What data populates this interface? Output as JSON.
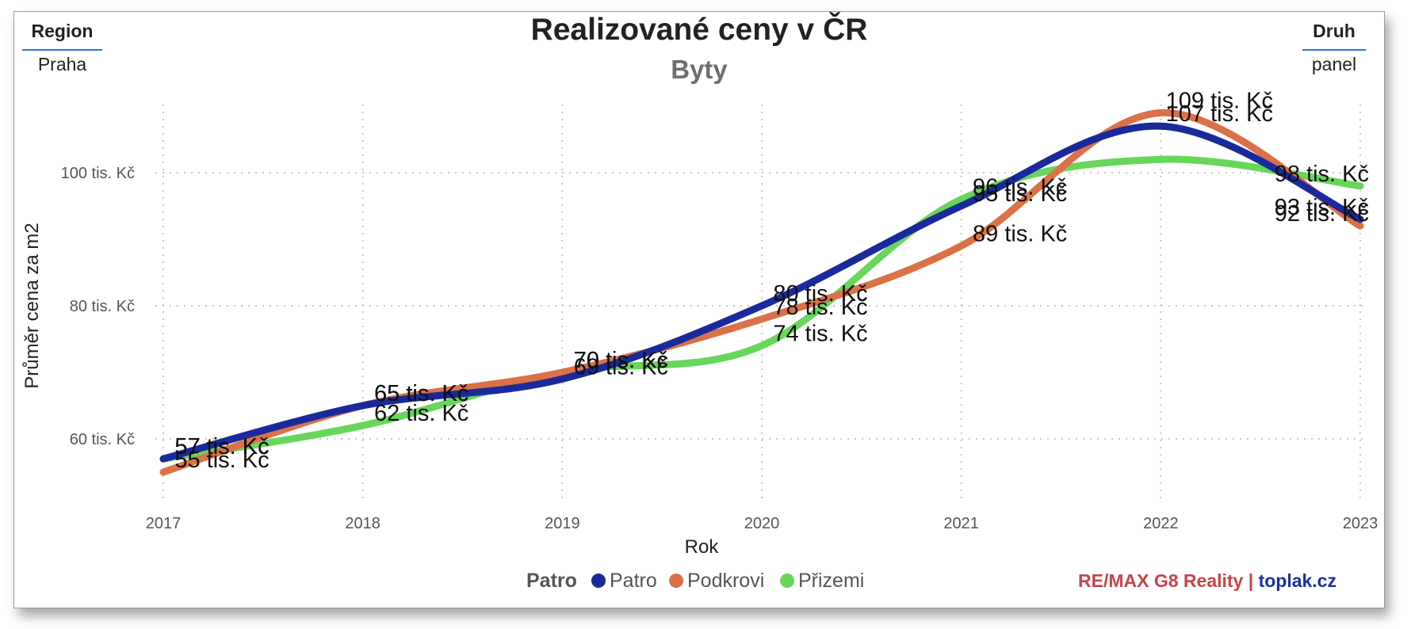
{
  "filters": {
    "region": {
      "header": "Region",
      "value": "Praha"
    },
    "druh": {
      "header": "Druh",
      "value": "panel"
    }
  },
  "header": {
    "title": "Realizované ceny v ČR",
    "subtitle": "Byty"
  },
  "credit": {
    "part1": "RE/MAX G8 Reality |",
    "part2": "toplak.cz",
    "colors": {
      "part1": "#c8434a",
      "part2": "#1e2fa0"
    }
  },
  "legend": {
    "title": "Patro",
    "items": [
      "Patro",
      "Podkrovi",
      "Přizemi"
    ]
  },
  "chart_data": {
    "type": "line",
    "x": [
      2017,
      2018,
      2019,
      2020,
      2021,
      2022,
      2023
    ],
    "x_tick_labels": [
      "2017",
      "2018",
      "2019",
      "2020",
      "2021",
      "2022",
      "2023"
    ],
    "xlabel": "Rok",
    "ylabel": "Průměr cena za m2",
    "y_ticks": [
      60,
      80,
      100
    ],
    "y_tick_labels": [
      "60 tis. Kč",
      "80 tis. Kč",
      "100 tis. Kč"
    ],
    "xlim": [
      2017,
      2023
    ],
    "ylim": [
      50,
      110
    ],
    "grid": true,
    "legend_position": "bottom",
    "smooth": true,
    "series": [
      {
        "name": "Patro",
        "color": "#1a2a9c",
        "values": [
          57,
          65,
          69,
          80,
          95,
          107,
          93
        ],
        "labels": [
          "57 tis. Kč",
          "65 tis. Kč",
          "69 tis. Kč",
          "80 tis. Kč",
          "95 tis. Kč",
          "107 tis. Kč",
          "93 tis. Kč"
        ]
      },
      {
        "name": "Podkrovi",
        "color": "#db7146",
        "values": [
          55,
          65,
          70,
          78,
          89,
          109,
          92
        ],
        "labels": [
          "55 tis. Kč",
          "65 tis. Kč",
          "70 tis. Kč",
          "78 tis. Kč",
          "89 tis. Kč",
          "109 tis. Kč",
          "92 tis. Kč"
        ]
      },
      {
        "name": "Přizemi",
        "color": "#68d65a",
        "values": [
          57,
          62,
          70,
          74,
          96,
          102,
          98
        ],
        "labels": [
          "57 tis. Kč",
          "62 tis. Kč",
          "70 tis. Kč",
          "74 tis. Kč",
          "96 tis. Kč",
          "",
          "98 tis. Kč"
        ]
      }
    ]
  }
}
